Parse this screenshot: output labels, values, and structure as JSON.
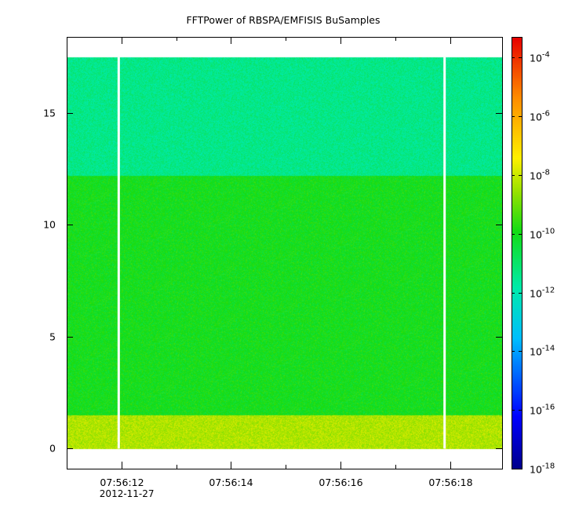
{
  "chart_data": {
    "type": "heatmap",
    "title": "FFTPower of RBSPA/EMFISIS  BuSamples",
    "xlabel": "",
    "ylabel": "",
    "x_date_label": "2012-11-27",
    "x_tick_labels": [
      "07:56:12",
      "07:56:14",
      "07:56:16",
      "07:56:18"
    ],
    "x_ticks_sec": [
      12,
      14,
      16,
      18
    ],
    "x_minor_ticks_sec": [
      13,
      15,
      17,
      19
    ],
    "xlim_sec": [
      11.0,
      18.95
    ],
    "y_ticks": [
      0,
      5,
      10,
      15
    ],
    "ylim": [
      -0.9,
      18.4
    ],
    "data_ylim": [
      0,
      17.5
    ],
    "gaps_sec": [
      11.95,
      17.9
    ],
    "bands": [
      {
        "y0": 0.0,
        "y1": 1.5,
        "log_power": -8.3
      },
      {
        "y0": 1.5,
        "y1": 12.2,
        "log_power": -10.0
      },
      {
        "y0": 12.2,
        "y1": 17.5,
        "log_power": -11.4
      }
    ],
    "colorbar": {
      "scale": "log",
      "range_exp": [
        -18,
        -3.3
      ],
      "tick_exponents": [
        -18,
        -16,
        -14,
        -12,
        -10,
        -8,
        -6,
        -4
      ],
      "base": "10"
    },
    "grid": false
  }
}
